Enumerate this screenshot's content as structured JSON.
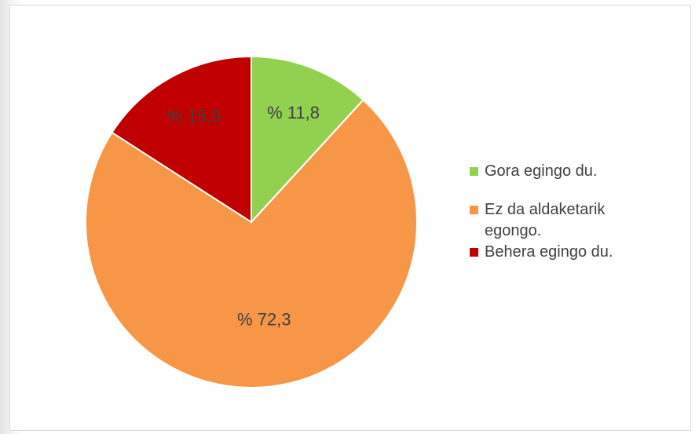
{
  "chart_data": {
    "type": "pie",
    "categories": [
      "Gora egingo du.",
      "Ez da aldaketarik egongo.",
      "Behera egingo du."
    ],
    "values": [
      11.8,
      72.3,
      15.9
    ],
    "value_labels": [
      "% 11,8",
      "% 72,3",
      "% 15,9"
    ],
    "colors": [
      "#92d050",
      "#f79646",
      "#c00000"
    ],
    "legend": "right"
  }
}
